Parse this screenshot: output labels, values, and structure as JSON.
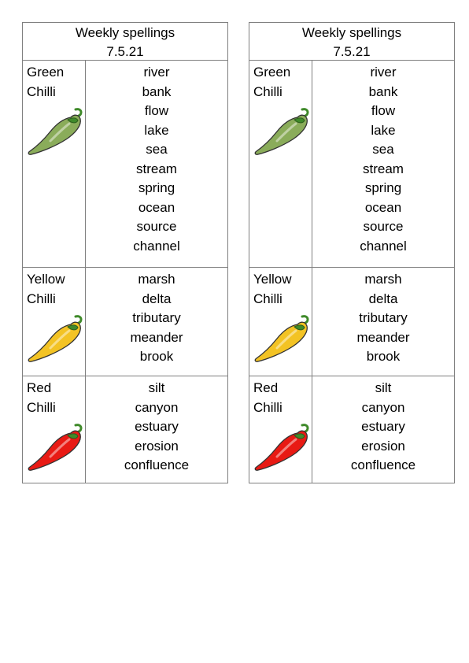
{
  "sheet": {
    "title": "Weekly spellings",
    "date": "7.5.21",
    "levels": [
      {
        "name": "Green\nChilli",
        "icon": "green-chilli-icon",
        "color": "#8aac5a",
        "words": [
          "river",
          "bank",
          "flow",
          "lake",
          "sea",
          "stream",
          "spring",
          "ocean",
          "source",
          "channel"
        ]
      },
      {
        "name": "Yellow\nChilli",
        "icon": "yellow-chilli-icon",
        "color": "#f3c324",
        "words": [
          "marsh",
          "delta",
          "tributary",
          "meander",
          "brook"
        ]
      },
      {
        "name": "Red\nChilli",
        "icon": "red-chilli-icon",
        "color": "#e81a14",
        "words": [
          "silt",
          "canyon",
          "estuary",
          "erosion",
          "confluence"
        ]
      }
    ]
  }
}
